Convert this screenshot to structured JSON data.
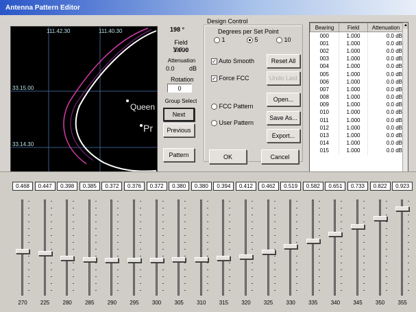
{
  "window": {
    "title": "Antenna Pattern Editor"
  },
  "map": {
    "lon_labels": [
      "111.42.30",
      "111.40.30"
    ],
    "lat_labels": [
      "33.15.00",
      "33.14.30"
    ],
    "place_labels": [
      "Queen",
      "Pr"
    ]
  },
  "info": {
    "angle": "198 °",
    "field_value_label": "Field Value",
    "field_value": "3.000",
    "attenuation_label": "Attenuation",
    "attenuation_value": "0.0",
    "attenuation_unit": "dB",
    "rotation_label": "Rotation",
    "rotation_value": "0",
    "group_select_label": "Group Select"
  },
  "buttons": {
    "next": "Next",
    "previous": "Previous",
    "pattern": "Pattern",
    "reset_all": "Reset All",
    "undo_last": "Undo Last",
    "open": "Open...",
    "save_as": "Save As...",
    "export": "Export...",
    "ok": "OK",
    "cancel": "Cancel"
  },
  "design_control": {
    "label": "Design Control",
    "degrees_label": "Degrees per Set Point",
    "degree_options": [
      "1",
      "5",
      "10"
    ],
    "selected_degree": "5",
    "auto_smooth": "Auto Smooth",
    "force_fcc": "Force FCC",
    "fcc_pattern": "FCC Pattern",
    "user_pattern": "User Pattern"
  },
  "table": {
    "headers": [
      "Bearing",
      "Field",
      "Attenuation"
    ],
    "rows": [
      [
        "000",
        "1.000",
        "0.0 dB"
      ],
      [
        "001",
        "1.000",
        "0.0 dB"
      ],
      [
        "002",
        "1.000",
        "0.0 dB"
      ],
      [
        "003",
        "1.000",
        "0.0 dB"
      ],
      [
        "004",
        "1.000",
        "0.0 dB"
      ],
      [
        "005",
        "1.000",
        "0.0 dB"
      ],
      [
        "006",
        "1.000",
        "0.0 dB"
      ],
      [
        "007",
        "1.000",
        "0.0 dB"
      ],
      [
        "008",
        "1.000",
        "0.0 dB"
      ],
      [
        "009",
        "1.000",
        "0.0 dB"
      ],
      [
        "010",
        "1.000",
        "0.0 dB"
      ],
      [
        "011",
        "1.000",
        "0.0 dB"
      ],
      [
        "012",
        "1.000",
        "0.0 dB"
      ],
      [
        "013",
        "1.000",
        "0.0 dB"
      ],
      [
        "014",
        "1.000",
        "0.0 dB"
      ],
      [
        "015",
        "1.000",
        "0.0 dB"
      ]
    ]
  },
  "sliders": [
    {
      "value": "0.468",
      "angle": "270"
    },
    {
      "value": "0.447",
      "angle": "225"
    },
    {
      "value": "0.398",
      "angle": "280"
    },
    {
      "value": "0.385",
      "angle": "285"
    },
    {
      "value": "0.372",
      "angle": "290"
    },
    {
      "value": "0.376",
      "angle": "295"
    },
    {
      "value": "0.372",
      "angle": "300"
    },
    {
      "value": "0.380",
      "angle": "305"
    },
    {
      "value": "0.380",
      "angle": "310"
    },
    {
      "value": "0.394",
      "angle": "315"
    },
    {
      "value": "0.412",
      "angle": "320"
    },
    {
      "value": "0.462",
      "angle": "325"
    },
    {
      "value": "0.519",
      "angle": "330"
    },
    {
      "value": "0.582",
      "angle": "335"
    },
    {
      "value": "0.651",
      "angle": "340"
    },
    {
      "value": "0.733",
      "angle": "345"
    },
    {
      "value": "0.822",
      "angle": "350"
    },
    {
      "value": "0.923",
      "angle": "355"
    }
  ]
}
